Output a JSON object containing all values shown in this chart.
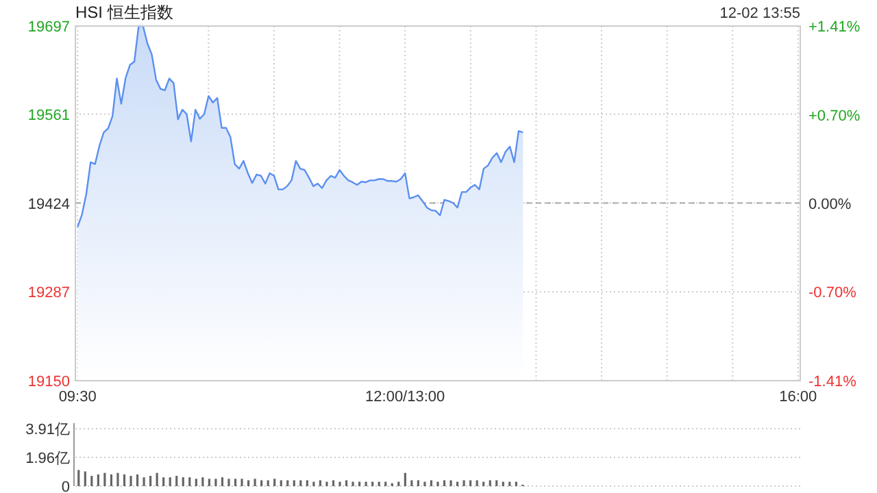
{
  "chart_data": [
    {
      "type": "area",
      "title": "HSI 恒生指数",
      "annotations": [
        "12-02 13:55"
      ],
      "categories": [
        "09:30",
        null,
        null,
        null,
        null,
        null,
        null,
        null,
        null,
        null,
        null,
        null,
        null,
        null,
        null,
        null,
        null,
        null,
        null,
        null,
        null,
        null,
        null,
        null,
        null,
        null,
        null,
        null,
        null,
        null,
        null,
        null,
        null,
        null,
        null,
        null,
        null,
        null,
        null,
        null,
        null,
        null,
        null,
        null,
        null,
        null,
        null,
        null,
        null,
        null,
        null,
        null,
        null,
        null,
        null,
        null,
        null,
        null,
        null,
        null,
        null,
        null,
        null,
        null,
        null,
        null,
        null,
        null,
        null,
        null,
        null,
        null,
        null,
        null,
        null,
        "12:00/13:00",
        null,
        null,
        null,
        null,
        null,
        null,
        null,
        null,
        null,
        null,
        null,
        null,
        null,
        null,
        null,
        null,
        null,
        null,
        null,
        null,
        null,
        null,
        null,
        null,
        null,
        null,
        null,
        null,
        null,
        null,
        null,
        null,
        null,
        null,
        null,
        null,
        null,
        null,
        null,
        null,
        null,
        null,
        null,
        null,
        null,
        null,
        null,
        null,
        null,
        null,
        null,
        null,
        null,
        null,
        null,
        null,
        null,
        null,
        null,
        null,
        null,
        null,
        null,
        null,
        null,
        null,
        null,
        null,
        null,
        null,
        null,
        null,
        null,
        null,
        null,
        null,
        null,
        null,
        null,
        null,
        null,
        null,
        null,
        null,
        null,
        null,
        null,
        null,
        null,
        "16:00"
      ],
      "ylim": [
        19150,
        19697
      ],
      "yticks": [
        19150,
        19287,
        19424,
        19561,
        19697
      ],
      "y2lim": [
        -1.41,
        1.41
      ],
      "y2ticks": [
        {
          "value": -1.41,
          "label": "-1.41%"
        },
        {
          "value": -0.7,
          "label": "-0.70%"
        },
        {
          "value": 0,
          "label": "0.00%"
        },
        {
          "value": 0.7,
          "label": "+0.70%"
        },
        {
          "value": 1.41,
          "label": "+1.41%"
        }
      ],
      "grid": true,
      "line_style": "solid",
      "ref_lines": [
        {
          "axis": "y",
          "value": 19424,
          "line_style": "dashed",
          "color": "#aaaaaa"
        }
      ],
      "series": [
        {
          "color": "#5b8ff0",
          "values": [
            19387,
            19406,
            19438,
            19487,
            19484,
            19512,
            19533,
            19539,
            19558,
            19616,
            19577,
            19617,
            19637,
            19642,
            19697,
            19697,
            19670,
            19653,
            19614,
            19600,
            19598,
            19616,
            19609,
            19553,
            19568,
            19561,
            19519,
            19568,
            19554,
            19561,
            19589,
            19579,
            19586,
            19540,
            19540,
            19526,
            19484,
            19477,
            19489,
            19470,
            19455,
            19468,
            19466,
            19454,
            19470,
            19466,
            19445,
            19445,
            19450,
            19459,
            19489,
            19477,
            19475,
            19463,
            19450,
            19454,
            19447,
            19459,
            19466,
            19463,
            19475,
            19466,
            19459,
            19456,
            19452,
            19457,
            19456,
            19459,
            19459,
            19461,
            19461,
            19458,
            19458,
            19457,
            19461,
            19470,
            19431,
            19433,
            19436,
            19427,
            19417,
            19413,
            19412,
            19405,
            19429,
            19427,
            19424,
            19417,
            19441,
            19441,
            19448,
            19452,
            19445,
            19477,
            19482,
            19494,
            19501,
            19487,
            19503,
            19511,
            19487,
            19535,
            19533,
            null,
            null,
            null,
            null,
            null,
            null,
            null,
            null,
            null,
            null,
            null,
            null,
            null,
            null,
            null,
            null,
            null,
            null,
            null,
            null,
            null,
            null,
            null,
            null,
            null,
            null,
            null,
            null,
            null,
            null,
            null,
            null,
            null,
            null,
            null,
            null,
            null,
            null,
            null,
            null,
            null,
            null,
            null,
            null,
            null,
            null,
            null,
            null,
            null,
            null,
            null,
            null,
            null,
            null,
            null,
            null,
            null,
            null,
            null,
            null,
            null,
            null,
            null
          ]
        }
      ]
    },
    {
      "type": "bar",
      "ylim": [
        0,
        3.91
      ],
      "yticks": [
        0,
        {
          "value": 1.96,
          "label": "1.96亿"
        },
        {
          "value": 3.91,
          "label": "3.91亿"
        }
      ],
      "grid": "y",
      "tick_labels": "y",
      "categories": [
        null,
        null,
        null,
        null,
        null,
        null,
        null,
        null,
        null,
        null,
        null,
        null,
        null,
        null,
        null,
        null,
        null,
        null,
        null,
        null,
        null,
        null,
        null,
        null,
        null,
        null,
        null,
        null,
        null,
        null,
        null,
        null,
        null,
        null,
        null,
        null,
        null,
        null,
        null,
        null,
        null,
        null,
        null,
        null,
        null,
        null,
        null,
        null,
        null,
        null,
        null,
        null,
        null,
        null,
        null,
        null,
        null,
        null,
        null,
        null,
        null,
        null,
        null,
        null,
        null,
        null,
        null,
        null,
        null,
        null,
        null,
        null,
        null,
        null,
        null,
        null,
        null,
        null,
        null,
        null,
        null,
        null,
        null,
        null,
        null,
        null,
        null,
        null,
        null,
        null,
        null,
        null,
        null,
        null,
        null,
        null,
        null,
        null,
        null,
        null,
        null,
        null,
        null,
        null,
        null,
        null,
        null,
        null,
        null,
        null,
        null
      ],
      "series": [
        {
          "color": "#666666",
          "values": [
            1.1,
            1.0,
            0.7,
            0.8,
            0.9,
            0.8,
            0.9,
            0.8,
            0.7,
            0.8,
            0.6,
            0.7,
            0.9,
            0.6,
            0.6,
            0.7,
            0.6,
            0.6,
            0.5,
            0.6,
            0.5,
            0.5,
            0.6,
            0.5,
            0.5,
            0.5,
            0.4,
            0.5,
            0.4,
            0.4,
            0.5,
            0.4,
            0.4,
            0.4,
            0.4,
            0.4,
            0.3,
            0.4,
            0.3,
            0.4,
            0.3,
            0.4,
            0.3,
            0.3,
            0.3,
            0.3,
            0.3,
            0.3,
            0.2,
            0.3,
            0.9,
            0.4,
            0.4,
            0.3,
            0.4,
            0.3,
            0.4,
            0.4,
            0.3,
            0.4,
            0.4,
            0.4,
            0.3,
            0.4,
            0.4,
            0.3,
            0.3,
            0.3,
            0.1,
            null,
            null,
            null,
            null,
            null,
            null,
            null,
            null,
            null,
            null,
            null,
            null,
            null,
            null,
            null,
            null,
            null,
            null,
            null,
            null,
            null,
            null,
            null,
            null,
            null,
            null,
            null,
            null,
            null,
            null,
            null,
            null,
            null,
            null,
            null,
            null,
            null,
            null,
            null,
            null,
            null,
            null
          ]
        }
      ]
    }
  ]
}
